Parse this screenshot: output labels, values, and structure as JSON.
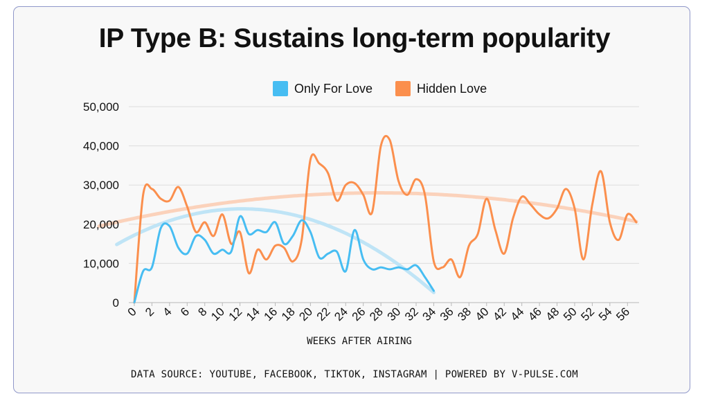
{
  "header": {
    "title": "IP Type B: Sustains long-term popularity"
  },
  "footer": {
    "text": "DATA SOURCE: YOUTUBE, FACEBOOK, TIKTOK, INSTAGRAM | POWERED BY V-PULSE.COM"
  },
  "legend": {
    "items": [
      "Only For Love",
      "Hidden Love"
    ]
  },
  "colors": {
    "only_for_love": "#47bdf2",
    "hidden_love": "#fb8f4d",
    "trend_only_for_love": "#bfe4f6",
    "trend_hidden_love": "#fbd2bb"
  },
  "chart_data": {
    "type": "line",
    "title": "IP Type B: Sustains long-term popularity",
    "xlabel": "WEEKS AFTER AIRING",
    "ylabel": "",
    "xlim": [
      0,
      57
    ],
    "ylim": [
      0,
      50000
    ],
    "grid": true,
    "legend_position": "top",
    "x_ticks": [
      0,
      2,
      4,
      6,
      8,
      10,
      12,
      14,
      16,
      18,
      20,
      22,
      24,
      26,
      28,
      30,
      32,
      34,
      36,
      38,
      40,
      42,
      44,
      46,
      48,
      50,
      52,
      54,
      56
    ],
    "y_ticks": [
      0,
      10000,
      20000,
      30000,
      40000,
      50000
    ],
    "y_tick_labels": [
      "0",
      "10,000",
      "20,000",
      "30,000",
      "40,000",
      "50,000"
    ],
    "series": [
      {
        "name": "Only For Love",
        "x": [
          0,
          1,
          2,
          3,
          4,
          5,
          6,
          7,
          8,
          9,
          10,
          11,
          12,
          13,
          14,
          15,
          16,
          17,
          18,
          19,
          20,
          21,
          22,
          23,
          24,
          25,
          26,
          27,
          28,
          29,
          30,
          31,
          32,
          33,
          34
        ],
        "values": [
          0,
          8000,
          9000,
          19000,
          19500,
          14000,
          12500,
          17000,
          16000,
          12500,
          13500,
          13000,
          22000,
          17500,
          18500,
          18000,
          20500,
          15000,
          17000,
          21000,
          18000,
          11500,
          12500,
          13000,
          8000,
          18500,
          11000,
          8500,
          9000,
          8500,
          9000,
          8500,
          9500,
          6500,
          3000
        ]
      },
      {
        "name": "Hidden Love",
        "x": [
          0,
          1,
          2,
          3,
          4,
          5,
          6,
          7,
          8,
          9,
          10,
          11,
          12,
          13,
          14,
          15,
          16,
          17,
          18,
          19,
          20,
          21,
          22,
          23,
          24,
          25,
          26,
          27,
          28,
          29,
          30,
          31,
          32,
          33,
          34,
          35,
          36,
          37,
          38,
          39,
          40,
          41,
          42,
          43,
          44,
          45,
          46,
          47,
          48,
          49,
          50,
          51,
          52,
          53,
          54,
          55,
          56,
          57
        ],
        "values": [
          0,
          27500,
          29000,
          26500,
          26000,
          29500,
          24500,
          18000,
          20500,
          17000,
          22500,
          15000,
          18000,
          7500,
          13500,
          11000,
          14500,
          14000,
          10500,
          16000,
          36500,
          35500,
          33000,
          26000,
          30000,
          30500,
          27500,
          23000,
          40000,
          41500,
          31000,
          27500,
          31500,
          27500,
          10500,
          9000,
          11000,
          6500,
          14500,
          17500,
          26500,
          18500,
          12500,
          21500,
          27000,
          25000,
          22500,
          21500,
          24000,
          29000,
          24000,
          11000,
          25000,
          33500,
          20500,
          16000,
          22500,
          20500
        ]
      }
    ],
    "trendlines": [
      {
        "series": "Only For Love",
        "x_start": -2,
        "x_end": 34,
        "coefficients": [
          17200,
          1100,
          -45
        ]
      },
      {
        "series": "Hidden Love",
        "x_start": -4,
        "x_end": 57,
        "coefficients": [
          21500,
          470,
          -8.5
        ]
      }
    ]
  }
}
